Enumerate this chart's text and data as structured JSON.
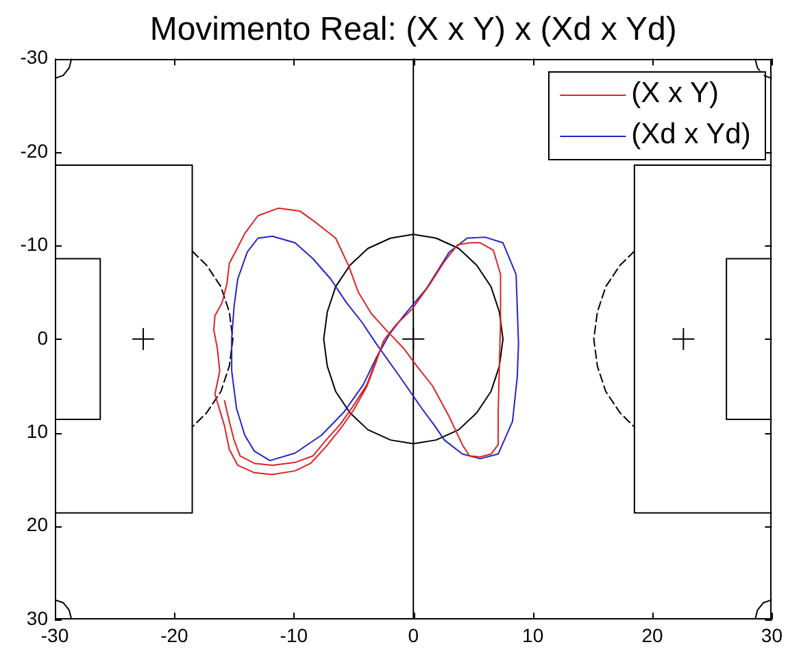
{
  "chart_data": {
    "type": "line",
    "title": "Movimento Real: (X x Y) x (Xd x Yd)",
    "xlim": [
      -30,
      30
    ],
    "ylim": [
      30,
      -30
    ],
    "xticks": [
      -30,
      -20,
      -10,
      0,
      10,
      20,
      30
    ],
    "yticks": [
      -30,
      -20,
      -10,
      0,
      10,
      20,
      30
    ],
    "legend": "top right",
    "marker": "none",
    "series": [
      {
        "name": "(X x Y)",
        "color": "#dd2222",
        "x": [
          -15.8,
          -15.4,
          -15.0,
          -14.5,
          -13.3,
          -11.8,
          -9.9,
          -8.4,
          -7.3,
          -6.1,
          -5.0,
          -3.9,
          -3.1,
          -2.4,
          -1.4,
          -0.1,
          1.4,
          2.6,
          3.7,
          4.8,
          5.6,
          6.7,
          7.3,
          7.3,
          7.2,
          7.1,
          7.1,
          6.5,
          5.6,
          4.7,
          4.1,
          3.0,
          1.6,
          0.3,
          -0.8,
          -2.3,
          -3.5,
          -4.6,
          -5.4,
          -6.5,
          -8.4,
          -9.5,
          -11.3,
          -13.0,
          -14.1,
          -14.9,
          -15.4,
          -15.6,
          -16.0,
          -16.6,
          -16.7,
          -16.4,
          -16.2,
          -16.6,
          -15.8,
          -15.4,
          -14.7,
          -13.3,
          -11.8,
          -9.9,
          -8.6,
          -7.3,
          -6.1,
          -5.0,
          -3.9,
          -3.1,
          -2.5
        ],
        "values": [
          6.6,
          8.8,
          10.8,
          12.5,
          13.3,
          13.5,
          13.2,
          12.5,
          10.8,
          9.1,
          7.1,
          4.9,
          2.2,
          0,
          -1.6,
          -3.2,
          -5.9,
          -8.3,
          -10.1,
          -10.3,
          -10.3,
          -9.5,
          -6.9,
          -2.0,
          2.9,
          7.8,
          11.3,
          12.3,
          12.6,
          12.5,
          11.3,
          8.3,
          5.0,
          2.9,
          1.0,
          -1.0,
          -2.7,
          -5.0,
          -7.8,
          -10.8,
          -12.7,
          -13.7,
          -14.0,
          -13.2,
          -11.3,
          -9.3,
          -8.1,
          -5.9,
          -3.9,
          -2.5,
          -1.0,
          1.0,
          3.4,
          5.9,
          9.3,
          11.8,
          13.5,
          14.3,
          14.5,
          14.1,
          13.3,
          11.5,
          9.6,
          7.6,
          5.1,
          2.4,
          0.2
        ]
      },
      {
        "name": "(Xd x Yd)",
        "color": "#2222cc",
        "x": [
          -11.8,
          -9.9,
          -8.4,
          -6.9,
          -5.6,
          -4.3,
          -3.1,
          -1.2,
          0.7,
          1.8,
          2.6,
          4.1,
          5.6,
          7.1,
          8.3,
          8.7,
          8.8,
          8.6,
          7.5,
          6.0,
          4.5,
          3.0,
          1.1,
          -0.8,
          -2.0,
          -3.1,
          -4.2,
          -5.8,
          -7.7,
          -9.9,
          -12.0,
          -13.3,
          -14.1,
          -14.8,
          -15.2,
          -15.2,
          -15.0,
          -14.7,
          -13.9,
          -13.0,
          -11.8,
          -9.9
        ],
        "values": [
          -11.0,
          -10.3,
          -8.6,
          -6.4,
          -3.9,
          -1.8,
          0.5,
          3.9,
          7.4,
          9.3,
          10.8,
          12.3,
          12.8,
          12.3,
          8.8,
          4.0,
          0.5,
          -6.9,
          -10.3,
          -10.9,
          -10.8,
          -9.3,
          -5.4,
          -2.5,
          -0.5,
          2.0,
          4.9,
          7.8,
          10.3,
          12.2,
          13.0,
          12.0,
          10.3,
          7.4,
          3.4,
          0,
          -3.5,
          -6.4,
          -9.3,
          -10.8,
          -11.0,
          -10.3
        ]
      },
      {
        "color": "#000000",
        "x": [
          0,
          0,
          null,
          7.5,
          7.2,
          6.5,
          5.3,
          3.8,
          1.9,
          0,
          -1.9,
          -3.8,
          -5.3,
          -6.5,
          -7.2,
          -7.5,
          -7.2,
          -6.5,
          -5.3,
          -3.8,
          -1.9,
          0,
          1.9,
          3.8,
          5.3,
          6.5,
          7.2,
          7.5,
          7.2,
          null,
          -30,
          -18.5,
          -18.5,
          -30,
          null,
          -30,
          -26.2,
          -26.2,
          -30,
          null,
          30,
          18.5,
          18.5,
          30,
          null,
          30,
          26.2,
          26.2,
          30,
          null,
          -28.6,
          -28.8,
          -29.3,
          -30,
          null,
          28.6,
          28.8,
          29.3,
          30,
          null,
          -28.6,
          -28.8,
          -29.3,
          -30,
          null,
          28.6,
          28.8,
          29.3,
          30
        ],
        "values": [
          -30,
          30,
          null,
          0,
          2.9,
          5.6,
          7.9,
          9.7,
          10.8,
          11.2,
          10.8,
          9.7,
          7.9,
          5.6,
          2.9,
          0,
          -2.9,
          -5.6,
          -7.9,
          -9.7,
          -10.8,
          -11.2,
          -10.8,
          -9.7,
          -7.9,
          -5.6,
          -2.9,
          0,
          2.9,
          null,
          -18.6,
          -18.6,
          18.6,
          18.6,
          null,
          -8.6,
          -8.6,
          8.6,
          8.6,
          null,
          -18.6,
          -18.6,
          18.6,
          18.6,
          null,
          -8.6,
          -8.6,
          8.6,
          8.6,
          null,
          -30,
          -29,
          -28.2,
          -27.9,
          null,
          -30,
          -29,
          -28.2,
          -27.9,
          null,
          30,
          29,
          28.2,
          27.9,
          null,
          30,
          29,
          28.2,
          27.9
        ]
      },
      {
        "color": "#000000",
        "line_style": "dashed",
        "x": [
          -18.5,
          -17.3,
          -16.1,
          -15.4,
          -15.1,
          -15.4,
          -16.1,
          -17.3,
          -18.5,
          null,
          18.5,
          17.3,
          16.1,
          15.4,
          15.1,
          15.4,
          16.1,
          17.3,
          18.5
        ],
        "values": [
          -9.4,
          -7.9,
          -5.6,
          -2.9,
          0,
          2.9,
          5.6,
          7.9,
          9.4,
          null,
          -9.4,
          -7.9,
          -5.6,
          -2.9,
          0,
          2.9,
          5.6,
          7.9,
          9.4
        ]
      },
      {
        "type": "scatter",
        "marker": "cross",
        "color": "#000000",
        "x": [
          -22.6,
          0,
          22.6
        ],
        "values": [
          0,
          0,
          0
        ]
      }
    ]
  }
}
